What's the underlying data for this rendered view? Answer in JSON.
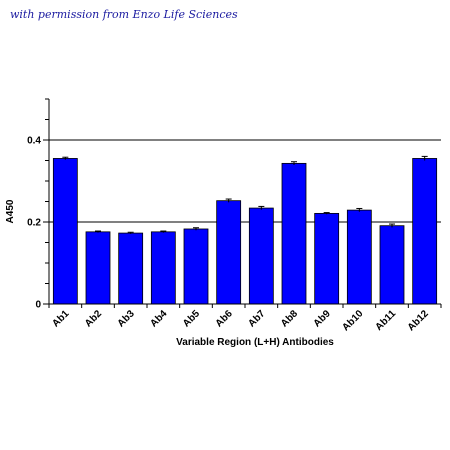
{
  "credit_text": "with permission from Enzo Life Sciences",
  "chart_data": {
    "type": "bar",
    "categories": [
      "Ab1",
      "Ab2",
      "Ab3",
      "Ab4",
      "Ab5",
      "Ab6",
      "Ab7",
      "Ab8",
      "Ab9",
      "Ab10",
      "Ab11",
      "Ab12"
    ],
    "values": [
      0.355,
      0.176,
      0.173,
      0.176,
      0.183,
      0.252,
      0.234,
      0.343,
      0.221,
      0.229,
      0.191,
      0.355
    ],
    "errors": [
      0.003,
      0.002,
      0.002,
      0.002,
      0.003,
      0.004,
      0.004,
      0.004,
      0.002,
      0.004,
      0.004,
      0.005
    ],
    "title": "",
    "xlabel": "Variable Region (L+H) Antibodies",
    "ylabel": "A450",
    "ylim": [
      0,
      0.5
    ],
    "yticks": [
      0,
      0.2,
      0.4
    ],
    "ytick_labels": [
      "0",
      "0.2",
      "0.4"
    ],
    "grid": true,
    "bar_color": "#0000ff",
    "legend": "none"
  }
}
